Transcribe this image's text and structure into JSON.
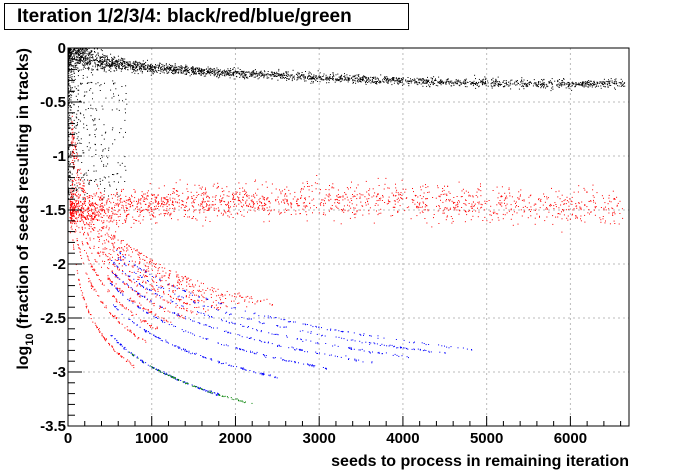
{
  "chart_data": {
    "type": "scatter",
    "title": "Iteration 1/2/3/4: black/red/blue/green",
    "xlabel": "seeds to process in remaining iteration",
    "ylabel_parts": [
      "log",
      "10",
      " (fraction of seeds resulting in tracks)"
    ],
    "xlim": [
      0,
      6700
    ],
    "ylim": [
      -3.5,
      0
    ],
    "x_ticks": [
      0,
      1000,
      2000,
      3000,
      4000,
      5000,
      6000
    ],
    "x_tick_labels": [
      "0",
      "1000",
      "2000",
      "3000",
      "4000",
      "5000",
      "6000"
    ],
    "y_ticks": [
      0,
      -0.5,
      -1,
      -1.5,
      -2,
      -2.5,
      -3,
      -3.5
    ],
    "y_tick_labels": [
      "0",
      "-0.5",
      "-1",
      "-1.5",
      "-2",
      "-2.5",
      "-3",
      "-3.5"
    ],
    "grid": true,
    "series": [
      {
        "name": "iteration 1",
        "color": "#000000",
        "band": [
          {
            "x": 0,
            "y": 0
          },
          {
            "x": 500,
            "y": -0.12
          },
          {
            "x": 1000,
            "y": -0.17
          },
          {
            "x": 2000,
            "y": -0.22
          },
          {
            "x": 3000,
            "y": -0.26
          },
          {
            "x": 4000,
            "y": -0.29
          },
          {
            "x": 5000,
            "y": -0.31
          },
          {
            "x": 6000,
            "y": -0.32
          },
          {
            "x": 6700,
            "y": -0.32
          }
        ]
      },
      {
        "name": "iteration 2",
        "color": "#ff0000",
        "band": [
          {
            "x": 0,
            "y": -1.5
          },
          {
            "x": 1000,
            "y": -1.45
          },
          {
            "x": 2000,
            "y": -1.42
          },
          {
            "x": 3000,
            "y": -1.4
          },
          {
            "x": 4000,
            "y": -1.4
          },
          {
            "x": 5000,
            "y": -1.45
          },
          {
            "x": 6600,
            "y": -1.48
          }
        ]
      },
      {
        "name": "iteration 3",
        "color": "#0000ff",
        "curve_end_x": [
          1800,
          2500,
          3100,
          3650,
          4100,
          4500,
          4900
        ],
        "curve_k": [
          1,
          2,
          3,
          4,
          5,
          6,
          7
        ]
      },
      {
        "name": "iteration 4",
        "color": "#008000",
        "curve_range_x": [
          700,
          2200
        ],
        "curve_k": [
          1
        ]
      }
    ]
  }
}
